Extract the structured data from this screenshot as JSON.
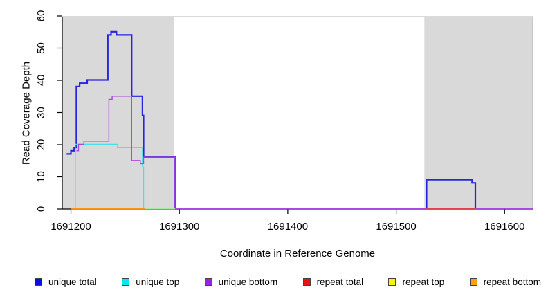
{
  "chart_data": {
    "type": "line",
    "step": true,
    "title": "",
    "xlabel": "Coordinate in Reference Genome",
    "ylabel": "Read Coverage Depth",
    "xlim": [
      1691192,
      1691626
    ],
    "ylim": [
      0,
      60
    ],
    "x_ticks": [
      1691200,
      1691300,
      1691400,
      1691500,
      1691600
    ],
    "y_ticks": [
      0,
      10,
      20,
      30,
      40,
      50,
      60
    ],
    "grid": false,
    "legend_position": "bottom",
    "background_regions": [
      {
        "name": "shaded-region-left",
        "x0": 1691192,
        "x1": 1691295,
        "color": "#d9d9d9"
      },
      {
        "name": "shaded-region-right",
        "x0": 1691526,
        "x1": 1691626,
        "color": "#d9d9d9"
      }
    ],
    "series": [
      {
        "name": "unique total",
        "color": "#2626dd",
        "line_width": 2.2,
        "segments": [
          [
            [
              1691196,
              17
            ],
            [
              1691200,
              17
            ],
            [
              1691200,
              18
            ],
            [
              1691203,
              18
            ],
            [
              1691203,
              19
            ],
            [
              1691205,
              19
            ],
            [
              1691205,
              38
            ],
            [
              1691208,
              38
            ],
            [
              1691208,
              39
            ],
            [
              1691215,
              39
            ],
            [
              1691215,
              40
            ],
            [
              1691234,
              40
            ],
            [
              1691234,
              54
            ],
            [
              1691237,
              54
            ],
            [
              1691237,
              55
            ],
            [
              1691242,
              55
            ],
            [
              1691242,
              54
            ],
            [
              1691256,
              54
            ],
            [
              1691256,
              35
            ],
            [
              1691266,
              35
            ],
            [
              1691266,
              29
            ],
            [
              1691267,
              29
            ],
            [
              1691267,
              16
            ],
            [
              1691296,
              16
            ],
            [
              1691296,
              0
            ],
            [
              1691528,
              0
            ],
            [
              1691528,
              9
            ],
            [
              1691570,
              9
            ],
            [
              1691570,
              8
            ],
            [
              1691573,
              8
            ],
            [
              1691573,
              0
            ],
            [
              1691626,
              0
            ]
          ]
        ]
      },
      {
        "name": "unique top",
        "color": "#45e0e8",
        "line_width": 1.4,
        "segments": [
          [
            [
              1691204,
              0
            ],
            [
              1691204,
              20
            ],
            [
              1691243,
              20
            ],
            [
              1691243,
              19
            ],
            [
              1691266,
              19
            ],
            [
              1691266,
              13
            ],
            [
              1691267,
              13
            ],
            [
              1691267,
              0
            ]
          ]
        ]
      },
      {
        "name": "unique bottom",
        "color": "#a84ae0",
        "line_width": 1.4,
        "segments": [
          [
            [
              1691205,
              18
            ],
            [
              1691207,
              18
            ],
            [
              1691207,
              20
            ],
            [
              1691212,
              20
            ],
            [
              1691212,
              21
            ],
            [
              1691235,
              21
            ],
            [
              1691235,
              34
            ],
            [
              1691238,
              34
            ],
            [
              1691238,
              35
            ],
            [
              1691256,
              35
            ],
            [
              1691256,
              15
            ],
            [
              1691264,
              15
            ],
            [
              1691264,
              14
            ],
            [
              1691267,
              14
            ],
            [
              1691267,
              16
            ],
            [
              1691296,
              16
            ],
            [
              1691296,
              0
            ],
            [
              1691527,
              0
            ]
          ],
          [
            [
              1691573,
              0
            ],
            [
              1691626,
              0
            ]
          ]
        ]
      },
      {
        "name": "repeat total",
        "color": "#e04050",
        "line_width": 1.4,
        "segments": [
          [
            [
              1691527,
              0
            ],
            [
              1691573,
              0
            ]
          ]
        ]
      },
      {
        "name": "repeat top",
        "color": "#a8e8a0",
        "line_width": 1.6,
        "segments": [
          [
            [
              1691268,
              0
            ],
            [
              1691296,
              0
            ]
          ]
        ]
      },
      {
        "name": "repeat bottom",
        "color": "#ff9010",
        "line_width": 1.8,
        "segments": [
          [
            [
              1691200,
              0
            ],
            [
              1691268,
              0
            ]
          ]
        ]
      }
    ],
    "legend_entries": [
      {
        "label": "unique total",
        "color": "#0b0bee"
      },
      {
        "label": "unique top",
        "color": "#00e8ee"
      },
      {
        "label": "unique bottom",
        "color": "#9b1fe8"
      },
      {
        "label": "repeat total",
        "color": "#ee1010"
      },
      {
        "label": "repeat top",
        "color": "#f5f500"
      },
      {
        "label": "repeat bottom",
        "color": "#ffa010"
      }
    ]
  }
}
